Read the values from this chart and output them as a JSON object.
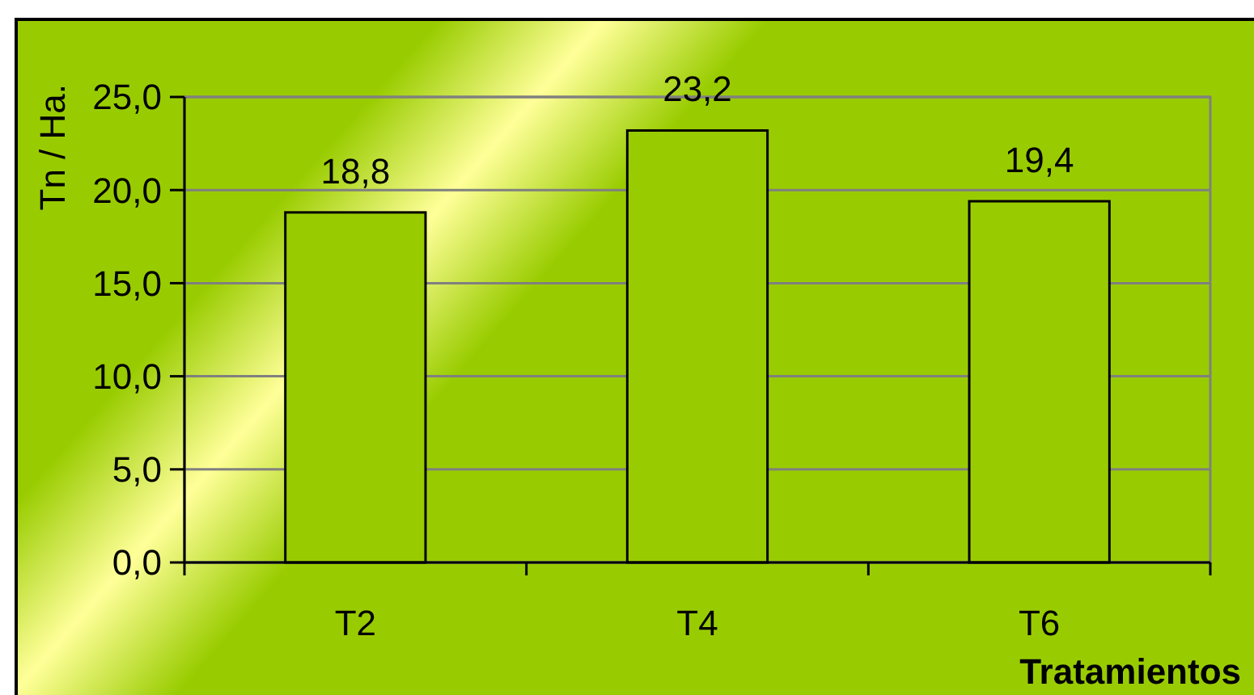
{
  "chart_data": {
    "type": "bar",
    "categories": [
      "T2",
      "T4",
      "T6"
    ],
    "values": [
      18.8,
      23.2,
      19.4
    ],
    "color": "#99cc00",
    "ylim": [
      0,
      25
    ],
    "yticks": [
      {
        "value": 0,
        "label": "0,0"
      },
      {
        "value": 5,
        "label": "5,0"
      },
      {
        "value": 10,
        "label": "10,0"
      },
      {
        "value": 15,
        "label": "15,0"
      },
      {
        "value": 20,
        "label": "20,0"
      },
      {
        "value": 25,
        "label": "25,0"
      }
    ],
    "ylabel": "Tn / Ha.",
    "xlabel": "Tratamientos",
    "value_labels": [
      "18,8",
      "23,2",
      "19,4"
    ],
    "grid": "y"
  }
}
